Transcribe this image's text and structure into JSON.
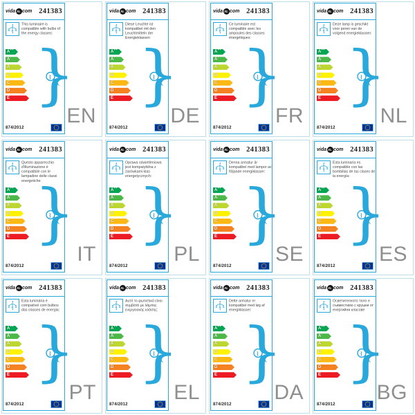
{
  "page": {
    "background": "#ffffff"
  },
  "card_template": {
    "logo_prefix": "vida",
    "logo_xl": "XL",
    "logo_suffix": "com",
    "product_number": "241383",
    "regulation": "874/2012",
    "brace": "}",
    "accent_color": "#29a8dc",
    "panel_border_color": "#bfdde9",
    "lang_code_color": "#8f8f8f",
    "icons": {
      "chandelier": "chandelier-icon",
      "bulb": "light-bulb-arrow-icon",
      "eu_flag": "eu-flag-icon",
      "brace": "curly-brace-glyph"
    },
    "energy_classes": [
      {
        "class": "A",
        "sup": "++",
        "color": "#00a651"
      },
      {
        "class": "A",
        "sup": "+",
        "color": "#4cb848"
      },
      {
        "class": "A",
        "sup": "",
        "color": "#bed630"
      },
      {
        "class": "B",
        "sup": "",
        "color": "#fff200"
      },
      {
        "class": "C",
        "sup": "",
        "color": "#fcb813"
      },
      {
        "class": "D",
        "sup": "",
        "color": "#f58220"
      },
      {
        "class": "E",
        "sup": "",
        "color": "#ed1c24"
      }
    ]
  },
  "cards": [
    {
      "lang": "EN",
      "description": "This luminaire is compatible with bulbs of the energy classes:"
    },
    {
      "lang": "DE",
      "description": "Diese Leuchte ist kompatibel mit den Leuchtmitteln der Energieklassen"
    },
    {
      "lang": "FR",
      "description": "Ce luminaire est compatible avec les ampoules des classes énergétiques:"
    },
    {
      "lang": "NL",
      "description": "Deze lamp is geschikt voor peren van de volgend energieklassen:"
    },
    {
      "lang": "IT",
      "description": "Questo apparecchio d'illuminazione è compatibile con le lampadine delle classi energetiche:"
    },
    {
      "lang": "PL",
      "description": "Oprawa oświetleniowa jest kompatybilna z żarówkami klas energetycznych:"
    },
    {
      "lang": "SE",
      "description": "Denna armatur är kompatibel med lampor av följande energiklasser:"
    },
    {
      "lang": "ES",
      "description": "Esta luminaria es compatible con las bombillas de las clases de la energía:"
    },
    {
      "lang": "PT",
      "description": "Esta luminária é compatível com bulbos das classes de energia:"
    },
    {
      "lang": "EL",
      "description": "Αυτό το φωτιστικό είναι συμβατό με λάμπες ενεργειακής κλάσης:"
    },
    {
      "lang": "DA",
      "description": "Dette armatur er kompatibel med løg af energiklasser:"
    },
    {
      "lang": "BG",
      "description": "Осветителното тяло е съвместимо с крушки от енергийни класове"
    }
  ]
}
